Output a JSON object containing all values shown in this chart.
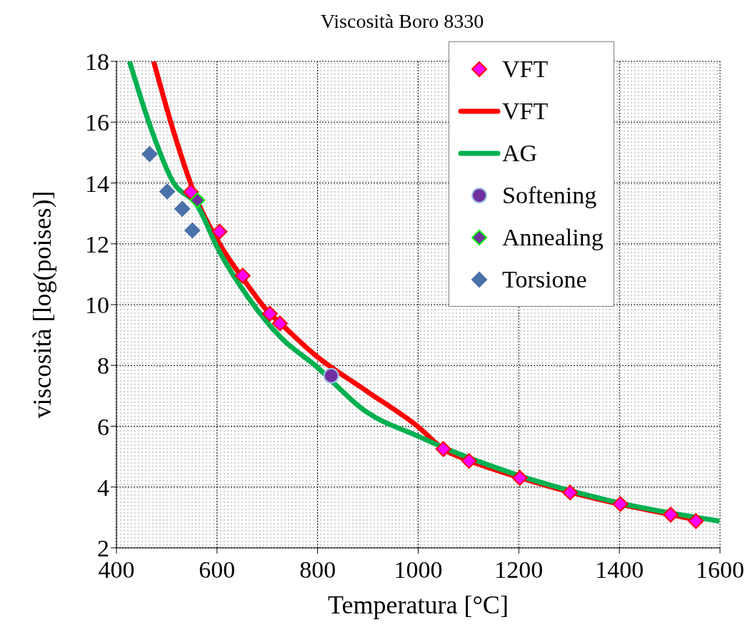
{
  "chart_data": {
    "type": "scatter",
    "title": "Viscosità Boro 8330",
    "xlabel": "Temperatura [°C]",
    "ylabel": "viscosità [log(poises)]",
    "xlim": [
      400,
      1600
    ],
    "xticks": [
      400,
      600,
      800,
      1000,
      1200,
      1400,
      1600
    ],
    "ylim": [
      2,
      18
    ],
    "yticks": [
      2,
      4,
      6,
      8,
      10,
      12,
      14,
      16,
      18
    ],
    "grid": true,
    "legend": "top right",
    "series": [
      {
        "name": "VFT",
        "marker": "diamond",
        "color": "#ff00ff",
        "x": [
          548,
          560,
          605,
          651,
          705,
          725,
          1050,
          1101,
          1202,
          1302,
          1402,
          1502,
          1552
        ],
        "values": [
          13.7,
          null,
          12.4,
          10.95,
          9.7,
          9.38,
          5.25,
          4.86,
          4.3,
          3.82,
          3.44,
          3.09,
          2.88
        ]
      },
      {
        "name": "VFT",
        "type": "line",
        "marker": "none",
        "color": "#ff0000",
        "x": [
          474,
          512,
          561,
          605,
          661,
          705,
          725,
          795,
          897,
          1000,
          1050,
          1100,
          1200,
          1300,
          1400,
          1500,
          1550
        ],
        "values": [
          18,
          15.78,
          13.4,
          12.0,
          10.64,
          9.7,
          9.4,
          8.34,
          7.16,
          5.98,
          5.25,
          4.88,
          4.32,
          3.84,
          3.44,
          3.1,
          2.93
        ]
      },
      {
        "name": "AG",
        "type": "line",
        "marker": "none",
        "color": "#00b050",
        "x": [
          426,
          469,
          512,
          561,
          603,
          661,
          728,
          795,
          897,
          1000,
          1050,
          1202,
          1402,
          1599
        ],
        "values": [
          18,
          15.78,
          14.05,
          13.25,
          11.8,
          10.26,
          8.9,
          8.0,
          6.47,
          5.67,
          5.3,
          4.37,
          3.47,
          2.88
        ]
      },
      {
        "name": "Softening",
        "marker": "circle",
        "color": "#7030a0",
        "x": [
          827
        ],
        "values": [
          7.66
        ]
      },
      {
        "name": "Annealing",
        "marker": "diamond",
        "color": "#7030a0",
        "x": [
          561
        ],
        "values": [
          13.43
        ]
      },
      {
        "name": "Torsione",
        "marker": "diamond",
        "color": "#4a72a8",
        "x": [
          466,
          501,
          531,
          551
        ],
        "values": [
          14.95,
          13.72,
          13.15,
          12.44
        ]
      }
    ]
  }
}
